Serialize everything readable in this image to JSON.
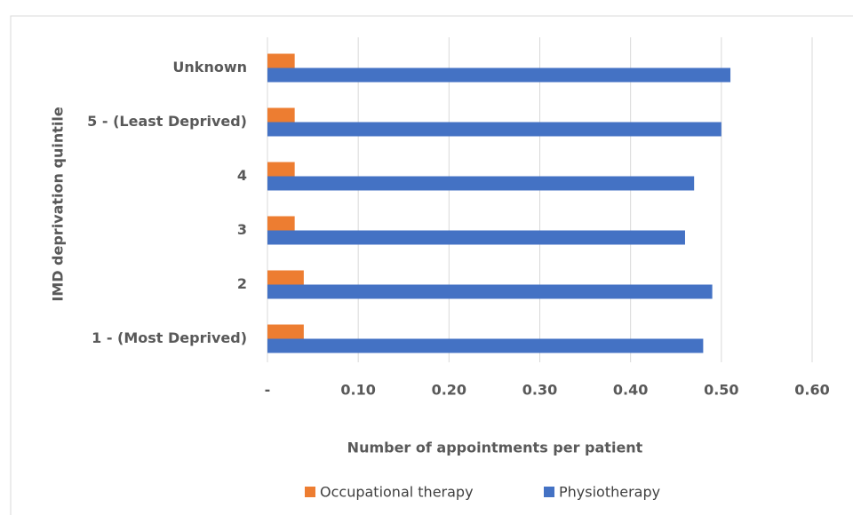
{
  "chart_data": {
    "type": "hbar",
    "x_label": "Number of appointments per patient",
    "y_label": "IMD deprivation quintile",
    "categories": [
      "1 - (Most Deprived)",
      "2",
      "3",
      "4",
      "5 - (Least Deprived)",
      "Unknown"
    ],
    "series": [
      {
        "name": "Occupational therapy",
        "color": "#ed7d31",
        "values": [
          0.04,
          0.04,
          0.03,
          0.03,
          0.03,
          0.03
        ]
      },
      {
        "name": "Physiotherapy",
        "color": "#4472c4",
        "values": [
          0.48,
          0.49,
          0.46,
          0.47,
          0.5,
          0.51
        ]
      }
    ],
    "xlim": [
      0,
      0.6
    ],
    "xticks": [
      {
        "value": 0,
        "label": "-"
      },
      {
        "value": 0.1,
        "label": "0.10"
      },
      {
        "value": 0.2,
        "label": "0.20"
      },
      {
        "value": 0.3,
        "label": "0.30"
      },
      {
        "value": 0.4,
        "label": "0.40"
      },
      {
        "value": 0.5,
        "label": "0.50"
      },
      {
        "value": 0.6,
        "label": "0.60"
      }
    ],
    "grid": true,
    "legend": "bottom"
  }
}
